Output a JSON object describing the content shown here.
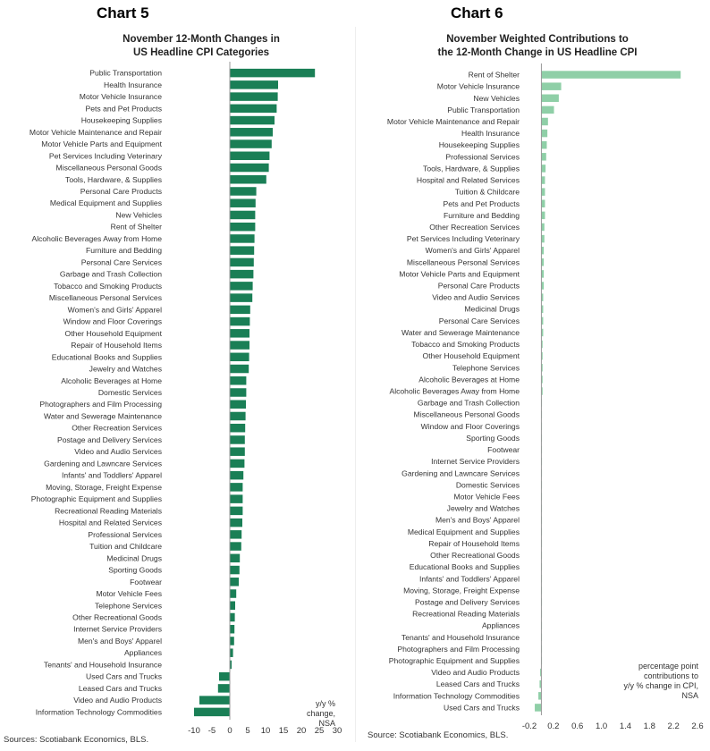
{
  "page": {
    "background": "#ffffff"
  },
  "chart_data": [
    {
      "type": "bar",
      "orientation": "horizontal",
      "chart_label": "Chart 5",
      "title_line1": "November 12-Month Changes in",
      "title_line2": "US Headline CPI Categories",
      "bar_color": "#1a7f56",
      "xlim": [
        -10,
        30
      ],
      "xticks": [
        -10,
        -5,
        0,
        5,
        10,
        15,
        20,
        25,
        30
      ],
      "unit_note": [
        "y/y %",
        "change,",
        "NSA"
      ],
      "source": "Sources: Scotiabank Economics, BLS.",
      "categories": [
        "Public Transportation",
        "Health Insurance",
        "Motor Vehicle Insurance",
        "Pets and Pet Products",
        "Housekeeping Supplies",
        "Motor Vehicle Maintenance and Repair",
        "Motor Vehicle Parts and Equipment",
        "Pet Services Including Veterinary",
        "Miscellaneous Personal Goods",
        "Tools, Hardware, & Supplies",
        "Personal Care Products",
        "Medical Equipment and Supplies",
        "New Vehicles",
        "Rent of Shelter",
        "Alcoholic Beverages Away from Home",
        "Furniture and Bedding",
        "Personal Care Services",
        "Garbage and Trash Collection",
        "Tobacco and Smoking Products",
        "Miscellaneous Personal Services",
        "Women's and Girls' Apparel",
        "Window and Floor Coverings",
        "Other Household Equipment",
        "Repair of Household Items",
        "Educational Books and Supplies",
        "Jewelry and Watches",
        "Alcoholic Beverages at Home",
        "Domestic Services",
        "Photographers and Film Processing",
        "Water and Sewerage Maintenance",
        "Other Recreation Services",
        "Postage and Delivery Services",
        "Video and Audio Services",
        "Gardening and Lawncare Services",
        "Infants' and Toddlers' Apparel",
        "Moving, Storage, Freight Expense",
        "Photographic Equipment and Supplies",
        "Recreational Reading Materials",
        "Hospital and Related Services",
        "Professional Services",
        "Tuition and Childcare",
        "Medicinal Drugs",
        "Sporting Goods",
        "Footwear",
        "Motor Vehicle Fees",
        "Telephone Services",
        "Other Recreational Goods",
        "Internet Service Providers",
        "Men's and Boys' Apparel",
        "Appliances",
        "Tenants' and Household Insurance",
        "Used Cars and Trucks",
        "Leased Cars and Trucks",
        "Video and Audio Products",
        "Information Technology Commodities"
      ],
      "values": [
        23.8,
        13.5,
        13.4,
        13.1,
        12.5,
        12.0,
        11.7,
        11.1,
        10.9,
        10.2,
        7.4,
        7.2,
        7.1,
        7.1,
        6.9,
        6.8,
        6.7,
        6.6,
        6.4,
        6.3,
        5.7,
        5.6,
        5.5,
        5.5,
        5.4,
        5.3,
        4.6,
        4.6,
        4.5,
        4.4,
        4.3,
        4.2,
        4.2,
        4.1,
        3.8,
        3.6,
        3.6,
        3.6,
        3.5,
        3.3,
        3.2,
        2.8,
        2.7,
        2.5,
        1.8,
        1.5,
        1.4,
        1.3,
        1.2,
        0.9,
        0.5,
        -3.0,
        -3.3,
        -8.5,
        -10.0
      ]
    },
    {
      "type": "bar",
      "orientation": "horizontal",
      "chart_label": "Chart 6",
      "title_line1": "November Weighted Contributions to",
      "title_line2": "the 12-Month Change in US Headline CPI",
      "bar_color": "#8fcfa7",
      "xlim": [
        -0.2,
        2.6
      ],
      "xticks": [
        -0.2,
        0.2,
        0.6,
        1.0,
        1.4,
        1.8,
        2.2,
        2.6
      ],
      "xtick_labels": [
        "-0.2",
        "0.2",
        "0.6",
        "1.0",
        "1.4",
        "1.8",
        "2.2",
        "2.6"
      ],
      "unit_note": [
        "percentage point",
        "contributions to",
        "y/y % change in CPI,",
        "NSA"
      ],
      "source": "Source: Scotiabank Economics, BLS.",
      "categories": [
        "Rent of Shelter",
        "Motor Vehicle Insurance",
        "New Vehicles",
        "Public Transportation",
        "Motor Vehicle Maintenance and Repair",
        "Health Insurance",
        "Housekeeping Supplies",
        "Professional Services",
        "Tools, Hardware, & Supplies",
        "Hospital and Related Services",
        "Tuition & Childcare",
        "Pets and Pet Products",
        "Furniture and Bedding",
        "Other Recreation Services",
        "Pet Services Including Veterinary",
        "Women's and Girls' Apparel",
        "Miscellaneous Personal Services",
        "Motor Vehicle Parts and Equipment",
        "Personal Care Products",
        "Video and Audio Services",
        "Medicinal Drugs",
        "Personal Care Services",
        "Water and Sewerage Maintenance",
        "Tobacco and Smoking Products",
        "Other Household Equipment",
        "Telephone Services",
        "Alcoholic Beverages at Home",
        "Alcoholic Beverages Away from Home",
        "Garbage and Trash Collection",
        "Miscellaneous Personal Goods",
        "Window and Floor Coverings",
        "Sporting Goods",
        "Footwear",
        "Internet Service Providers",
        "Gardening and Lawncare Services",
        "Domestic Services",
        "Motor Vehicle Fees",
        "Jewelry and Watches",
        "Men's and Boys' Apparel",
        "Medical Equipment and Supplies",
        "Repair of Household Items",
        "Other Recreational Goods",
        "Educational Books and Supplies",
        "Infants' and Toddlers' Apparel",
        "Moving, Storage, Freight Expense",
        "Postage and Delivery Services",
        "Recreational Reading Materials",
        "Appliances",
        "Tenants' and Household Insurance",
        "Photographers and Film Processing",
        "Photographic Equipment and Supplies",
        "Video and Audio Products",
        "Leased Cars and Trucks",
        "Information Technology Commodities",
        "Used Cars and Trucks"
      ],
      "values": [
        2.32,
        0.33,
        0.29,
        0.21,
        0.11,
        0.1,
        0.09,
        0.08,
        0.07,
        0.06,
        0.06,
        0.06,
        0.06,
        0.05,
        0.05,
        0.04,
        0.04,
        0.04,
        0.04,
        0.03,
        0.03,
        0.03,
        0.03,
        0.02,
        0.02,
        0.02,
        0.02,
        0.02,
        0.01,
        0.01,
        0.01,
        0.01,
        0.01,
        0.01,
        0.01,
        0.01,
        0.01,
        0.01,
        0.01,
        0.01,
        0.01,
        0.01,
        0.01,
        0.01,
        0.01,
        0.01,
        0.01,
        0.01,
        0.01,
        0.01,
        0.01,
        -0.02,
        -0.03,
        -0.05,
        -0.11
      ]
    }
  ]
}
